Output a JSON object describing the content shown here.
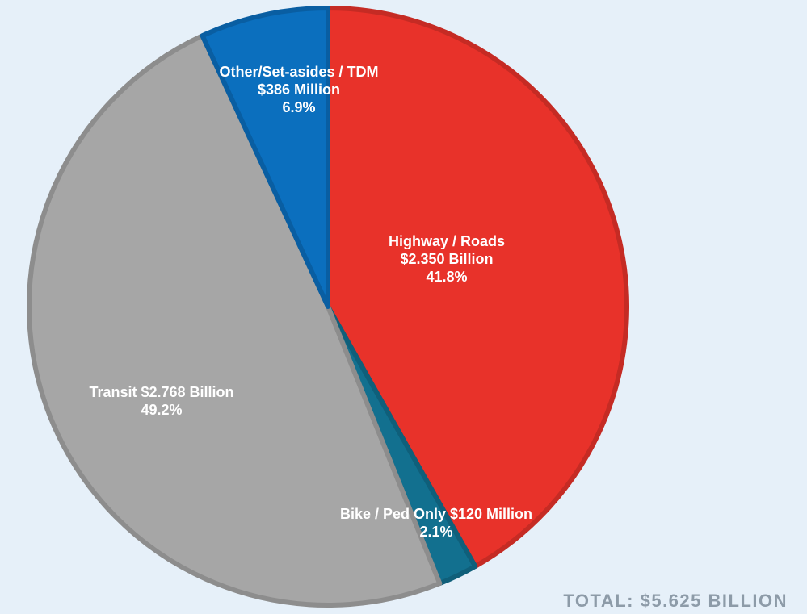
{
  "chart_data": {
    "type": "pie",
    "categories": [
      "Highway / Roads $2.350 Billion",
      "Bike / Ped Only $120 Million",
      "Transit $2.768 Billion",
      "Other/Set-asides / TDM $386 Million"
    ],
    "values": [
      41.8,
      2.1,
      49.2,
      6.9
    ],
    "value_labels": [
      "41.8%",
      "2.1%",
      "49.2%",
      "6.9%"
    ],
    "colors": [
      "#e8322a",
      "#12708f",
      "#a6a6a6",
      "#0b6fbe"
    ],
    "annotation": "TOTAL: $5.625 BILLION"
  }
}
